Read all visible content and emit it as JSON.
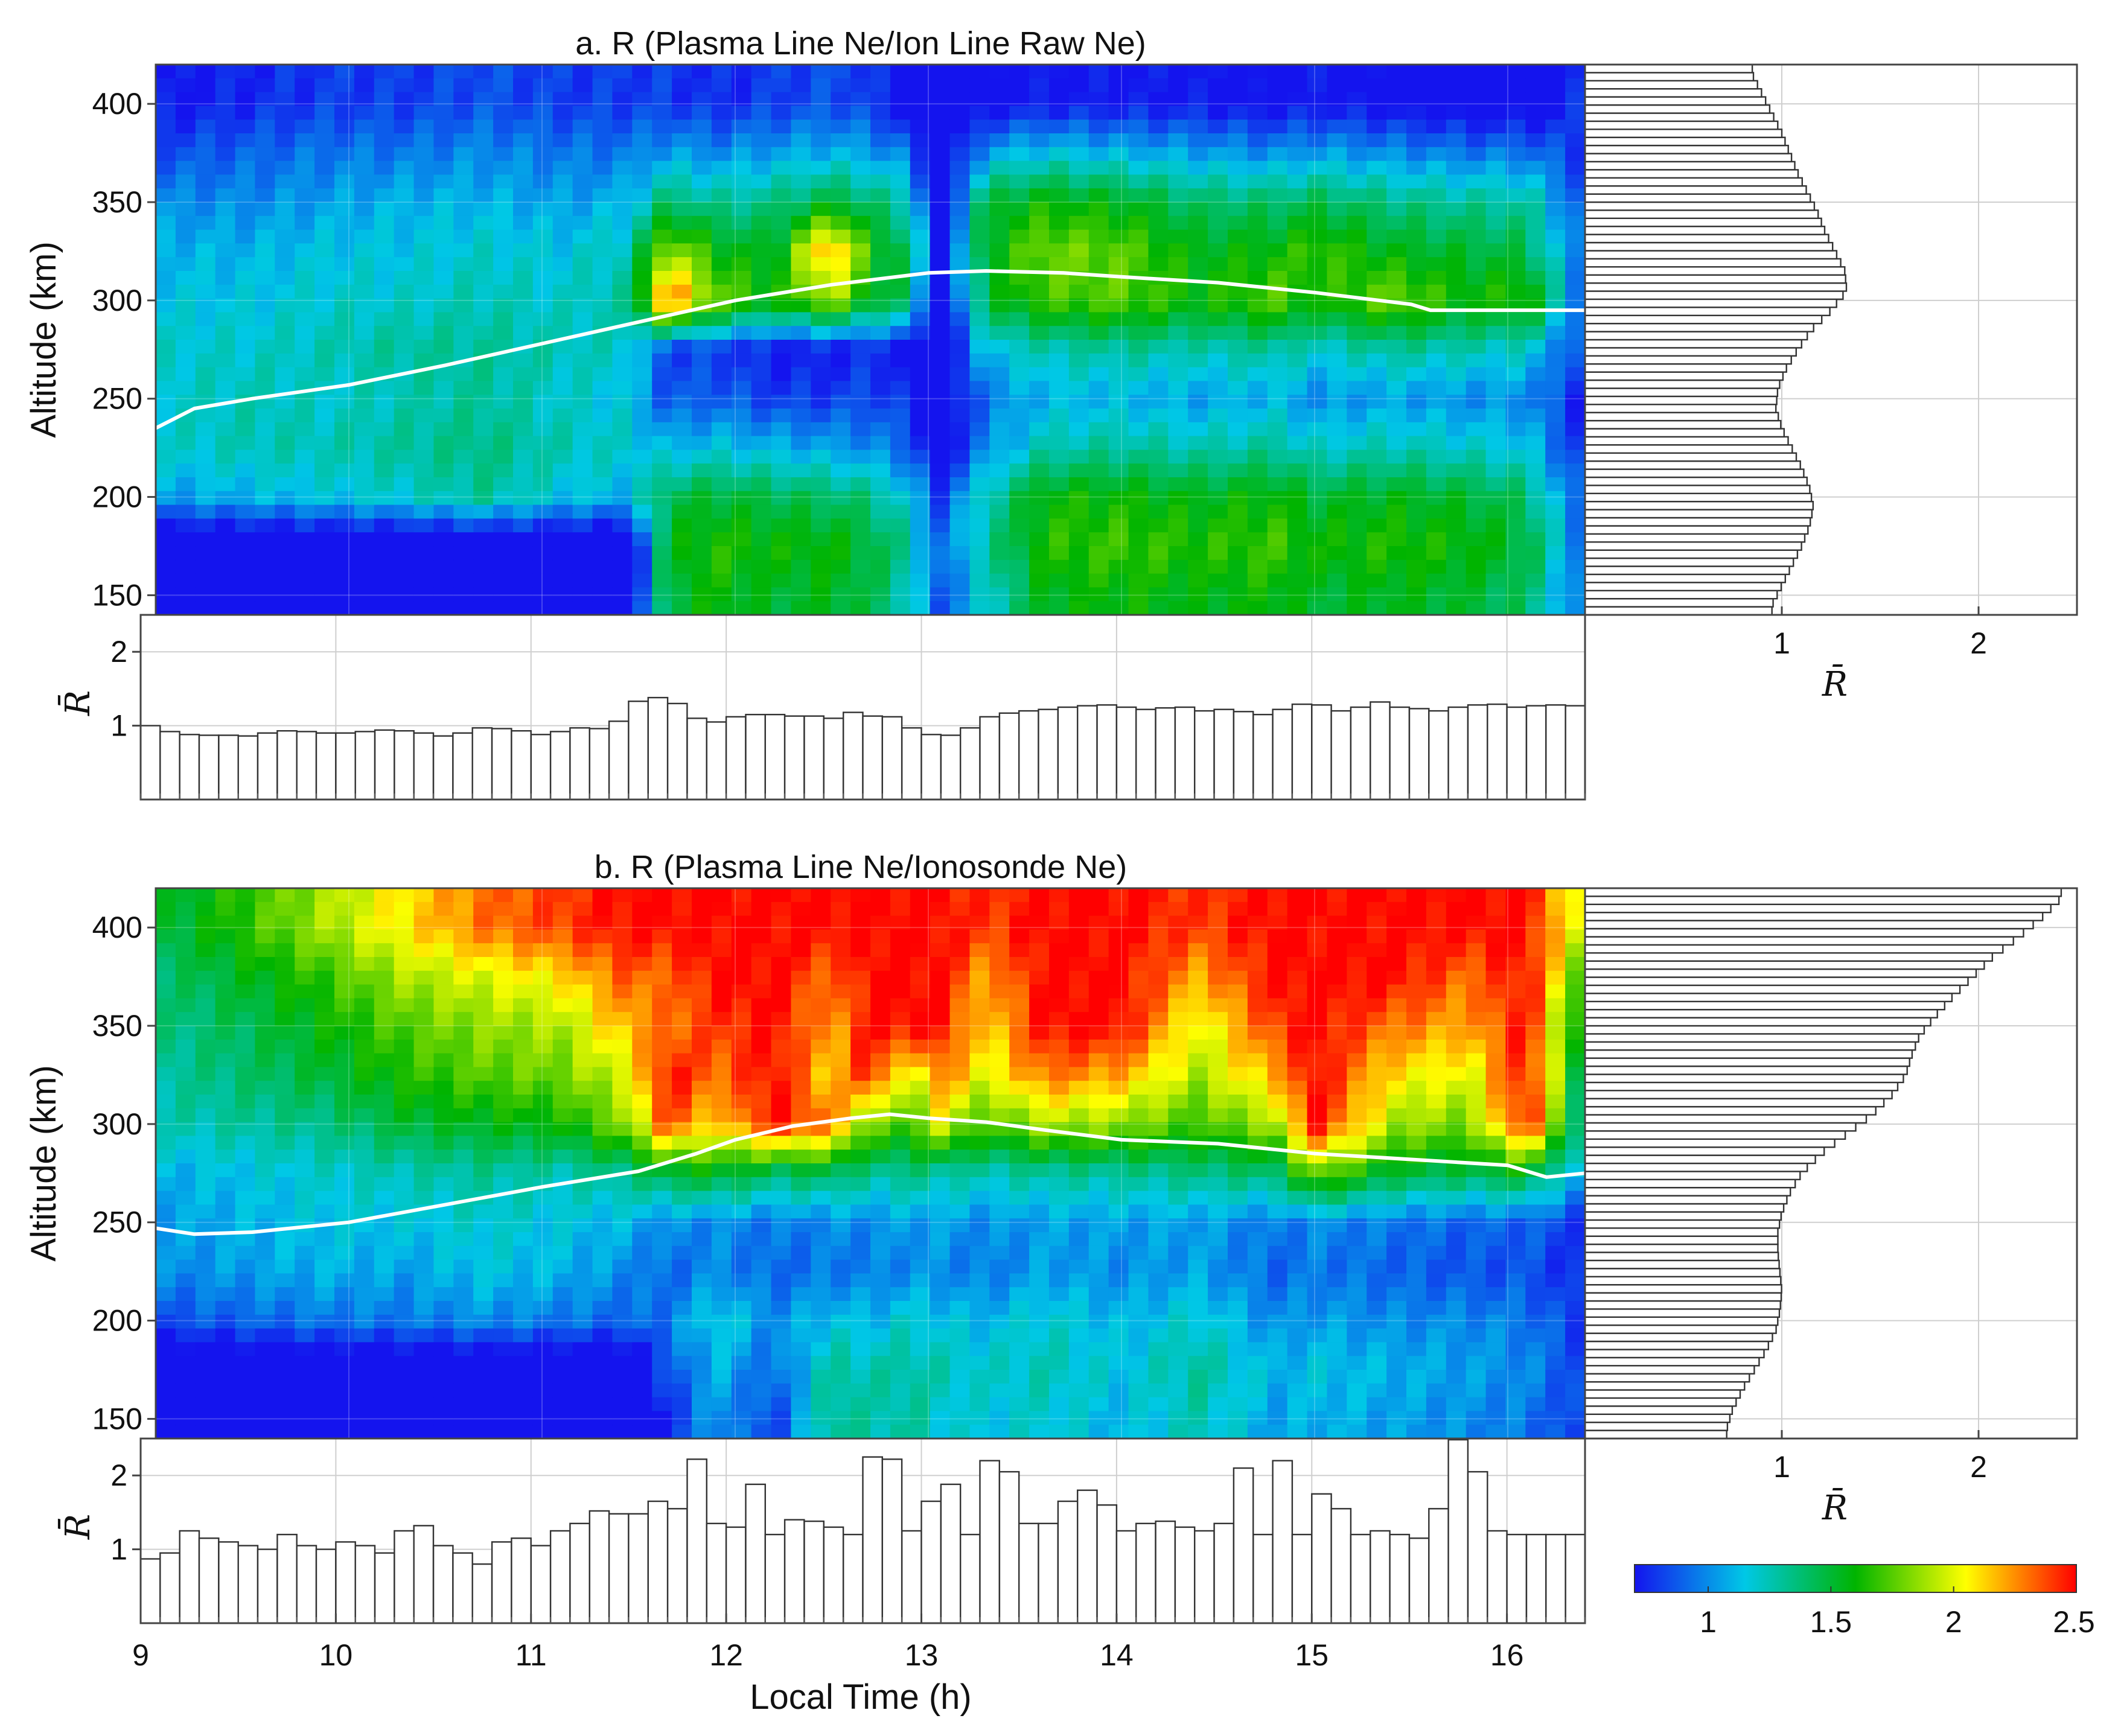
{
  "chart_data": [
    {
      "panel": "a",
      "type": "heatmap",
      "title": "a. R (Plasma Line Ne/Ion Line Raw Ne)",
      "xlabel": "Local Time (h)",
      "ylabel": "Altitude (km)",
      "xlim": [
        9,
        16.4
      ],
      "ylim": [
        140,
        420
      ],
      "yticks": [
        150,
        200,
        250,
        300,
        350,
        400
      ],
      "xticks": [
        9,
        10,
        11,
        12,
        13,
        14,
        15,
        16
      ],
      "heatmap_rows_altitude": [
        150,
        175,
        200,
        225,
        250,
        275,
        300,
        325,
        350,
        375,
        400
      ],
      "heatmap_columns_time": [
        9.1,
        9.5,
        9.9,
        10.3,
        10.7,
        11.1,
        11.45,
        11.65,
        11.9,
        12.2,
        12.5,
        12.7,
        12.9,
        13.05,
        13.3,
        13.6,
        14.0,
        14.4,
        14.8,
        15.0,
        15.4,
        15.8,
        16.1,
        16.35
      ],
      "heatmap_values": [
        [
          0.5,
          0.5,
          0.5,
          0.5,
          0.5,
          0.5,
          0.5,
          1.5,
          1.6,
          1.5,
          1.55,
          1.45,
          1.25,
          0.85,
          1.2,
          1.55,
          1.6,
          1.55,
          1.6,
          1.5,
          1.55,
          1.5,
          1.4,
          0.95
        ],
        [
          0.5,
          0.5,
          0.5,
          0.5,
          0.5,
          0.5,
          0.5,
          1.55,
          1.65,
          1.6,
          1.6,
          1.5,
          1.3,
          0.9,
          1.3,
          1.65,
          1.7,
          1.65,
          1.7,
          1.6,
          1.65,
          1.6,
          1.5,
          1.0
        ],
        [
          1.05,
          1.1,
          1.15,
          1.2,
          1.3,
          1.15,
          1.1,
          1.45,
          1.5,
          1.45,
          1.4,
          1.35,
          1.15,
          0.8,
          1.25,
          1.6,
          1.6,
          1.55,
          1.6,
          1.5,
          1.55,
          1.5,
          1.4,
          0.9
        ],
        [
          1.2,
          1.25,
          1.25,
          1.3,
          1.35,
          1.25,
          1.2,
          1.1,
          1.15,
          1.1,
          1.05,
          1.0,
          0.9,
          0.6,
          1.0,
          1.25,
          1.3,
          1.25,
          1.3,
          1.2,
          1.25,
          1.2,
          1.15,
          0.8
        ],
        [
          1.2,
          1.25,
          1.2,
          1.25,
          1.3,
          1.2,
          1.15,
          0.85,
          0.9,
          0.8,
          0.8,
          0.85,
          0.75,
          0.5,
          0.95,
          1.1,
          1.1,
          1.05,
          1.1,
          1.0,
          1.05,
          1.0,
          1.0,
          0.75
        ],
        [
          1.2,
          1.2,
          1.25,
          1.3,
          1.3,
          1.25,
          1.2,
          0.8,
          0.8,
          0.7,
          0.7,
          0.75,
          0.7,
          0.5,
          1.15,
          1.25,
          1.3,
          1.25,
          1.3,
          1.2,
          1.3,
          1.25,
          1.2,
          0.85
        ],
        [
          1.15,
          1.15,
          1.2,
          1.2,
          1.25,
          1.2,
          1.3,
          2.4,
          1.8,
          1.6,
          1.9,
          1.55,
          1.4,
          0.55,
          1.5,
          1.7,
          1.75,
          1.6,
          1.75,
          1.6,
          1.8,
          1.6,
          1.7,
          1.0
        ],
        [
          1.1,
          1.1,
          1.15,
          1.15,
          1.2,
          1.15,
          1.25,
          1.9,
          1.6,
          1.5,
          2.3,
          1.6,
          1.45,
          0.6,
          1.55,
          1.8,
          1.75,
          1.55,
          1.6,
          1.7,
          1.55,
          1.5,
          1.45,
          0.95
        ],
        [
          1.0,
          1.0,
          1.05,
          1.1,
          1.1,
          1.05,
          1.1,
          1.4,
          1.3,
          1.35,
          1.5,
          1.4,
          1.25,
          0.55,
          1.5,
          1.6,
          1.55,
          1.4,
          1.4,
          1.45,
          1.35,
          1.3,
          1.3,
          0.9
        ],
        [
          0.85,
          0.9,
          0.95,
          0.95,
          1.0,
          0.95,
          0.95,
          1.05,
          1.0,
          1.05,
          1.1,
          1.05,
          0.95,
          0.5,
          1.05,
          1.15,
          1.1,
          1.05,
          1.0,
          1.05,
          1.0,
          0.95,
          0.95,
          0.8
        ],
        [
          0.7,
          0.75,
          0.8,
          0.8,
          0.85,
          0.8,
          0.8,
          0.8,
          0.75,
          0.8,
          0.85,
          0.8,
          0.6,
          0.5,
          0.65,
          0.7,
          0.7,
          0.7,
          0.65,
          0.7,
          0.65,
          0.6,
          0.6,
          0.75
        ]
      ],
      "hmF2_line": {
        "x": [
          9.0,
          9.2,
          9.5,
          10.0,
          10.5,
          11.0,
          11.5,
          12.0,
          12.5,
          13.0,
          13.3,
          13.7,
          14.0,
          14.5,
          15.0,
          15.5,
          15.6,
          16.0,
          16.4
        ],
        "y": [
          235,
          245,
          250,
          257,
          267,
          278,
          289,
          300,
          308,
          314,
          315,
          314,
          312,
          309,
          304,
          298,
          295,
          295,
          295
        ]
      },
      "bottom_bar": {
        "ylabel": "R̄",
        "ylim": [
          0,
          2.5
        ],
        "yticks": [
          1,
          2
        ],
        "x": [
          9.05,
          9.15,
          9.25,
          9.35,
          9.45,
          9.55,
          9.65,
          9.75,
          9.85,
          9.95,
          10.05,
          10.15,
          10.25,
          10.35,
          10.45,
          10.55,
          10.65,
          10.75,
          10.85,
          10.95,
          11.05,
          11.15,
          11.25,
          11.35,
          11.45,
          11.55,
          11.65,
          11.75,
          11.85,
          11.95,
          12.05,
          12.15,
          12.25,
          12.35,
          12.45,
          12.55,
          12.65,
          12.75,
          12.85,
          12.95,
          13.05,
          13.15,
          13.25,
          13.35,
          13.45,
          13.55,
          13.65,
          13.75,
          13.85,
          13.95,
          14.05,
          14.15,
          14.25,
          14.35,
          14.45,
          14.55,
          14.65,
          14.75,
          14.85,
          14.95,
          15.05,
          15.15,
          15.25,
          15.35,
          15.45,
          15.55,
          15.65,
          15.75,
          15.85,
          15.95,
          16.05,
          16.15,
          16.25,
          16.35
        ],
        "values": [
          1.0,
          0.92,
          0.88,
          0.87,
          0.87,
          0.86,
          0.9,
          0.93,
          0.92,
          0.9,
          0.9,
          0.92,
          0.94,
          0.93,
          0.9,
          0.86,
          0.9,
          0.97,
          0.96,
          0.93,
          0.88,
          0.92,
          0.97,
          0.96,
          1.06,
          1.33,
          1.38,
          1.3,
          1.1,
          1.05,
          1.12,
          1.15,
          1.15,
          1.13,
          1.13,
          1.1,
          1.18,
          1.13,
          1.12,
          0.97,
          0.88,
          0.87,
          0.97,
          1.12,
          1.17,
          1.2,
          1.22,
          1.25,
          1.27,
          1.28,
          1.25,
          1.22,
          1.24,
          1.25,
          1.2,
          1.22,
          1.19,
          1.15,
          1.22,
          1.29,
          1.28,
          1.2,
          1.25,
          1.32,
          1.25,
          1.23,
          1.2,
          1.25,
          1.28,
          1.29,
          1.25,
          1.27,
          1.28,
          1.27
        ]
      },
      "side_bar": {
        "xlabel": "R̄",
        "xlim": [
          0,
          2.5
        ],
        "xticks": [
          1,
          2
        ],
        "altitude": [
          145,
          155,
          165,
          175,
          185,
          195,
          205,
          215,
          225,
          235,
          245,
          255,
          265,
          275,
          285,
          295,
          305,
          315,
          325,
          335,
          345,
          355,
          365,
          375,
          385,
          395,
          405,
          415
        ],
        "values": [
          0.95,
          1.0,
          1.05,
          1.1,
          1.14,
          1.16,
          1.14,
          1.1,
          1.05,
          1.0,
          0.97,
          0.98,
          1.02,
          1.08,
          1.15,
          1.25,
          1.33,
          1.32,
          1.27,
          1.22,
          1.18,
          1.13,
          1.08,
          1.04,
          1.0,
          0.95,
          0.9,
          0.85
        ]
      }
    },
    {
      "panel": "b",
      "type": "heatmap",
      "title": "b. R (Plasma Line Ne/Ionosonde Ne)",
      "xlabel": "Local Time (h)",
      "ylabel": "Altitude (km)",
      "xlim": [
        9,
        16.4
      ],
      "ylim": [
        140,
        420
      ],
      "yticks": [
        150,
        200,
        250,
        300,
        350,
        400
      ],
      "xticks": [
        9,
        10,
        11,
        12,
        13,
        14,
        15,
        16
      ],
      "heatmap_rows_altitude": [
        150,
        175,
        200,
        225,
        250,
        275,
        300,
        325,
        350,
        375,
        400
      ],
      "heatmap_columns_time": [
        9.1,
        9.5,
        9.9,
        10.3,
        10.7,
        11.1,
        11.45,
        11.65,
        11.9,
        12.2,
        12.5,
        12.7,
        12.9,
        13.05,
        13.3,
        13.6,
        14.0,
        14.4,
        14.8,
        15.0,
        15.4,
        15.8,
        16.1,
        16.35
      ],
      "heatmap_values": [
        [
          0.5,
          0.5,
          0.5,
          0.5,
          0.5,
          0.5,
          0.5,
          0.75,
          1.05,
          0.8,
          1.35,
          1.25,
          1.3,
          1.2,
          1.15,
          1.2,
          1.1,
          1.25,
          1.05,
          1.1,
          1.05,
          1.0,
          0.95,
          0.8
        ],
        [
          0.5,
          0.5,
          0.5,
          0.5,
          0.5,
          0.5,
          0.5,
          0.85,
          1.1,
          0.9,
          1.3,
          1.25,
          1.3,
          1.25,
          1.2,
          1.25,
          1.15,
          1.3,
          1.1,
          1.15,
          1.1,
          1.05,
          1.0,
          0.85
        ],
        [
          0.85,
          0.9,
          0.95,
          0.95,
          1.0,
          0.95,
          0.9,
          0.95,
          1.2,
          1.0,
          1.15,
          1.1,
          1.2,
          1.15,
          1.1,
          1.2,
          1.1,
          1.2,
          1.0,
          1.05,
          1.0,
          1.0,
          0.95,
          0.8
        ],
        [
          1.0,
          1.05,
          1.1,
          1.05,
          1.15,
          1.1,
          1.0,
          0.9,
          1.0,
          0.9,
          0.95,
          0.95,
          1.0,
          1.0,
          0.95,
          1.05,
          1.0,
          1.05,
          0.9,
          0.95,
          0.9,
          0.85,
          0.85,
          0.75
        ],
        [
          1.05,
          1.1,
          1.15,
          1.15,
          1.2,
          1.15,
          1.1,
          1.0,
          1.0,
          0.95,
          1.0,
          1.0,
          1.05,
          1.05,
          1.0,
          1.05,
          1.05,
          1.05,
          0.95,
          1.0,
          0.95,
          0.9,
          0.9,
          0.8
        ],
        [
          1.1,
          1.15,
          1.2,
          1.25,
          1.3,
          1.25,
          1.35,
          1.5,
          1.55,
          1.4,
          1.45,
          1.3,
          1.35,
          1.3,
          1.25,
          1.3,
          1.3,
          1.35,
          1.4,
          1.8,
          1.5,
          1.45,
          1.55,
          1.1
        ],
        [
          1.25,
          1.3,
          1.35,
          1.5,
          1.55,
          1.6,
          1.85,
          2.4,
          2.1,
          2.5,
          2.3,
          1.8,
          1.7,
          2.0,
          1.7,
          1.9,
          1.85,
          1.7,
          1.9,
          2.5,
          1.9,
          1.8,
          2.5,
          1.4
        ],
        [
          1.3,
          1.4,
          1.5,
          1.65,
          1.75,
          1.8,
          2.0,
          2.5,
          2.3,
          2.5,
          2.1,
          2.5,
          1.9,
          2.3,
          2.0,
          2.3,
          2.2,
          1.9,
          2.2,
          2.5,
          2.1,
          2.0,
          2.5,
          1.5
        ],
        [
          1.35,
          1.45,
          1.6,
          1.75,
          1.85,
          1.9,
          2.2,
          2.3,
          2.4,
          2.5,
          2.2,
          2.5,
          2.5,
          2.5,
          2.1,
          2.5,
          2.5,
          2.0,
          2.4,
          2.5,
          2.3,
          2.2,
          2.5,
          1.6
        ],
        [
          1.4,
          1.55,
          1.7,
          1.9,
          2.0,
          2.1,
          2.35,
          2.3,
          2.5,
          2.5,
          2.3,
          2.5,
          2.5,
          2.5,
          2.2,
          2.5,
          2.5,
          2.2,
          2.5,
          2.5,
          2.5,
          2.3,
          2.5,
          1.8
        ],
        [
          1.5,
          1.7,
          1.9,
          2.1,
          2.3,
          2.4,
          2.5,
          2.5,
          2.5,
          2.5,
          2.5,
          2.5,
          2.5,
          2.5,
          2.4,
          2.5,
          2.5,
          2.4,
          2.5,
          2.5,
          2.5,
          2.5,
          2.5,
          2.0
        ]
      ],
      "hmF2_line": {
        "x": [
          9.0,
          9.2,
          9.5,
          10.0,
          10.5,
          11.0,
          11.5,
          11.8,
          12.0,
          12.3,
          12.6,
          12.8,
          13.0,
          13.3,
          13.6,
          14.0,
          14.5,
          15.0,
          15.5,
          16.0,
          16.2,
          16.4
        ],
        "y": [
          247,
          244,
          245,
          250,
          259,
          268,
          276,
          285,
          292,
          299,
          303,
          305,
          303,
          301,
          297,
          292,
          290,
          285,
          282,
          279,
          273,
          275
        ]
      },
      "bottom_bar": {
        "ylabel": "R̄",
        "ylim": [
          0,
          2.5
        ],
        "yticks": [
          1,
          2
        ],
        "x": [
          9.05,
          9.15,
          9.25,
          9.35,
          9.45,
          9.55,
          9.65,
          9.75,
          9.85,
          9.95,
          10.05,
          10.15,
          10.25,
          10.35,
          10.45,
          10.55,
          10.65,
          10.75,
          10.85,
          10.95,
          11.05,
          11.15,
          11.25,
          11.35,
          11.45,
          11.55,
          11.65,
          11.75,
          11.85,
          11.95,
          12.05,
          12.15,
          12.25,
          12.35,
          12.45,
          12.55,
          12.65,
          12.75,
          12.85,
          12.95,
          13.05,
          13.15,
          13.25,
          13.35,
          13.45,
          13.55,
          13.65,
          13.75,
          13.85,
          13.95,
          14.05,
          14.15,
          14.25,
          14.35,
          14.45,
          14.55,
          14.65,
          14.75,
          14.85,
          14.95,
          15.05,
          15.15,
          15.25,
          15.35,
          15.45,
          15.55,
          15.65,
          15.75,
          15.85,
          15.95,
          16.05,
          16.15,
          16.25,
          16.35
        ],
        "values": [
          0.87,
          0.95,
          1.25,
          1.15,
          1.1,
          1.05,
          1.0,
          1.2,
          1.05,
          1.0,
          1.1,
          1.05,
          0.95,
          1.25,
          1.32,
          1.05,
          0.95,
          0.8,
          1.1,
          1.15,
          1.05,
          1.25,
          1.35,
          1.52,
          1.48,
          1.48,
          1.65,
          1.55,
          2.22,
          1.35,
          1.3,
          1.88,
          1.2,
          1.4,
          1.38,
          1.3,
          1.2,
          2.25,
          2.22,
          1.25,
          1.65,
          1.88,
          1.2,
          2.2,
          2.05,
          1.35,
          1.35,
          1.65,
          1.8,
          1.6,
          1.25,
          1.35,
          1.38,
          1.3,
          1.25,
          1.35,
          2.1,
          1.2,
          2.2,
          1.2,
          1.75,
          1.55,
          1.2,
          1.25,
          1.2,
          1.15,
          1.55,
          2.5,
          2.05,
          1.25,
          1.2,
          1.2,
          1.2,
          1.2
        ]
      },
      "side_bar": {
        "xlabel": "R̄",
        "xlim": [
          0,
          2.5
        ],
        "xticks": [
          1,
          2
        ],
        "altitude": [
          145,
          155,
          165,
          175,
          185,
          195,
          205,
          215,
          225,
          235,
          245,
          255,
          265,
          275,
          285,
          295,
          305,
          315,
          325,
          335,
          345,
          355,
          365,
          375,
          385,
          395,
          405,
          415
        ],
        "values": [
          0.72,
          0.75,
          0.8,
          0.86,
          0.92,
          0.97,
          0.99,
          1.0,
          0.99,
          0.98,
          0.98,
          1.0,
          1.04,
          1.1,
          1.2,
          1.33,
          1.46,
          1.56,
          1.63,
          1.66,
          1.7,
          1.78,
          1.87,
          1.97,
          2.07,
          2.2,
          2.32,
          2.42
        ]
      }
    }
  ],
  "colorbar": {
    "min": 0.7,
    "max": 2.5,
    "ticks": [
      "1",
      "1.5",
      "2",
      "2.5"
    ],
    "tick_values": [
      1,
      1.5,
      2,
      2.5
    ],
    "colors": [
      "#1414ee",
      "#00c8e6",
      "#00b400",
      "#ffff00",
      "#ff0000"
    ]
  }
}
